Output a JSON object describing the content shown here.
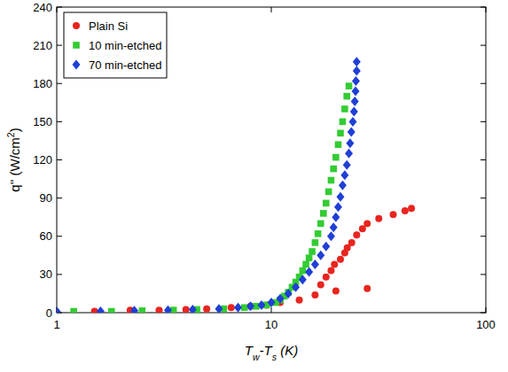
{
  "chart_data": {
    "type": "scatter",
    "x_label": "Tw-Ts (K)",
    "y_label": "q'' (W/cm2)",
    "log": "x",
    "legend": "top-left",
    "grid": false,
    "xlim": [
      1,
      100
    ],
    "xticks": [
      1,
      10,
      100
    ],
    "ylim": [
      0,
      240
    ],
    "yticks": [
      0,
      30,
      60,
      90,
      120,
      150,
      180,
      210,
      240
    ],
    "series": [
      {
        "name": "Plain Si",
        "color": "#e8251f",
        "marker": "circle",
        "x": [
          1.5,
          2.2,
          3,
          4,
          5,
          6.5,
          8,
          9.5,
          11,
          13.5,
          16,
          20,
          28,
          17,
          18,
          19,
          19.7,
          21,
          22,
          22.6,
          23.7,
          25,
          26.6,
          28,
          31.7,
          37,
          42,
          45
        ],
        "values": [
          1,
          2,
          2,
          2.5,
          3,
          4,
          5,
          6,
          8,
          10,
          14,
          17,
          19,
          22,
          28,
          33,
          38,
          42,
          47,
          51,
          55,
          61,
          66,
          70,
          74,
          77,
          80,
          82
        ]
      },
      {
        "name": "10 min-etched",
        "color": "#33cc33",
        "marker": "square",
        "x": [
          1.2,
          1.8,
          2.5,
          3.5,
          4.5,
          6,
          7.5,
          8.5,
          9.5,
          10.5,
          11,
          11.5,
          12,
          12.5,
          13,
          13.5,
          14,
          14.5,
          15,
          15.5,
          16,
          16.5,
          17,
          17.5,
          18,
          18.5,
          19,
          19.5,
          20,
          20.5,
          21,
          21.5,
          22,
          22.5,
          23
        ],
        "values": [
          1,
          1,
          1.5,
          2,
          2.5,
          3,
          4,
          5,
          6,
          8,
          10,
          13,
          16,
          20,
          24,
          28,
          33,
          38,
          43,
          48,
          55,
          62,
          70,
          78,
          86,
          95,
          104,
          113,
          122,
          132,
          141,
          150,
          160,
          170,
          178
        ]
      },
      {
        "name": "70 min-etched",
        "color": "#1f3fd6",
        "marker": "diamond",
        "x": [
          1,
          1.6,
          2.3,
          3.3,
          4.3,
          5.7,
          7,
          8,
          9,
          10,
          11,
          12,
          13,
          14,
          15,
          16,
          17,
          18,
          19,
          19.5,
          20,
          20.5,
          21,
          21.5,
          22,
          22.5,
          23,
          23.3,
          23.6,
          24,
          24.3,
          24.5,
          24.7,
          24.8,
          25,
          25
        ],
        "values": [
          1,
          1,
          1.5,
          2,
          2.5,
          3,
          4,
          5,
          6,
          8,
          11,
          15,
          20,
          26,
          32,
          38,
          45,
          52,
          60,
          67,
          75,
          83,
          91,
          100,
          108,
          116,
          125,
          133,
          142,
          150,
          158,
          166,
          174,
          182,
          190,
          197
        ]
      }
    ]
  }
}
